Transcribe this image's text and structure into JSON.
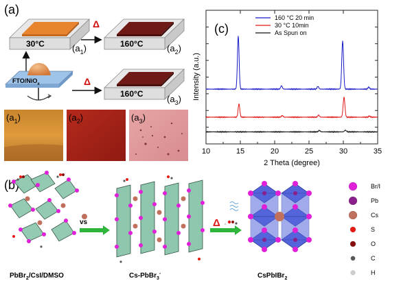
{
  "panel_a": {
    "label": "(a)",
    "heaters": [
      {
        "temp": "30°C",
        "tag": "(a",
        "sub": "1",
        "close": ")"
      },
      {
        "temp": "160°C",
        "tag": "(a",
        "sub": "2",
        "close": ")"
      },
      {
        "temp": "160°C",
        "tag": "(a",
        "sub": "3",
        "close": ")"
      }
    ],
    "substrate_pre": "FTO/NiO",
    "substrate_sub": "x",
    "delta": "Δ",
    "photos": [
      {
        "tag": "(a",
        "sub": "1",
        "close": ")"
      },
      {
        "tag": "(a",
        "sub": "2",
        "close": ")"
      },
      {
        "tag": "(a",
        "sub": "3",
        "close": ")"
      }
    ],
    "colors": {
      "film_30": "#e8832e",
      "film_160": "#6e1a16",
      "arrow": "#d01010"
    }
  },
  "panel_b": {
    "label": "(b)",
    "vs": "vs",
    "delta": "Δ",
    "cap1_pre": "PbBr",
    "cap1_sub": "2",
    "cap1_post": "/CsI/DMSO",
    "cap2_pre": "Cs-PbBr",
    "cap2_sub": "3",
    "cap2_sup": "-",
    "cap3_pre": "CsPbIBr",
    "cap3_sub": "2",
    "legend": [
      {
        "name": "Br/I",
        "color": "#e020d8"
      },
      {
        "name": "Pb",
        "color": "#8a1e8a"
      },
      {
        "name": "Cs",
        "color": "#c0705c"
      },
      {
        "name": "S",
        "color": "#e81a14"
      },
      {
        "name": "O",
        "color": "#8a0e0e"
      },
      {
        "name": "C",
        "color": "#5a5a5a"
      },
      {
        "name": "H",
        "color": "#cfcfcf"
      }
    ],
    "colors": {
      "octahedron_green": "#8fc7ae",
      "octahedron_blue": "#4659d8",
      "arrow_green": "#2fb43c",
      "arrow_red": "#e01818"
    }
  },
  "panel_c": {
    "label": "(c)"
  },
  "chart_data": {
    "type": "line",
    "xlabel": "2 Theta (degree)",
    "ylabel": "Intensity (a.u.)",
    "xlim": [
      10,
      35
    ],
    "xticks": [
      "10",
      "15",
      "20",
      "25",
      "30",
      "35"
    ],
    "x_tick_values": [
      10,
      15,
      20,
      25,
      30,
      35
    ],
    "ylim": [
      0,
      1
    ],
    "grid": false,
    "legend_position": "top-right",
    "series": [
      {
        "name": "160 °C 20 min",
        "color": "#1818c8",
        "baseline": 0.41,
        "peaks": [
          [
            14.7,
            0.4,
            0.12
          ],
          [
            21.0,
            0.025,
            0.12
          ],
          [
            26.3,
            0.02,
            0.12
          ],
          [
            29.9,
            0.36,
            0.13
          ],
          [
            33.7,
            0.015,
            0.12
          ]
        ]
      },
      {
        "name": "30 °C 10min",
        "color": "#e01818",
        "baseline": 0.2,
        "peaks": [
          [
            14.8,
            0.1,
            0.12
          ],
          [
            21.1,
            0.012,
            0.12
          ],
          [
            26.4,
            0.015,
            0.12
          ],
          [
            30.1,
            0.15,
            0.13
          ],
          [
            33.8,
            0.008,
            0.12
          ]
        ]
      },
      {
        "name": "As Spun on",
        "color": "#111111",
        "baseline": 0.09,
        "peaks": [
          [
            26.5,
            0.01,
            0.14
          ],
          [
            30.3,
            0.012,
            0.14
          ]
        ]
      }
    ]
  }
}
